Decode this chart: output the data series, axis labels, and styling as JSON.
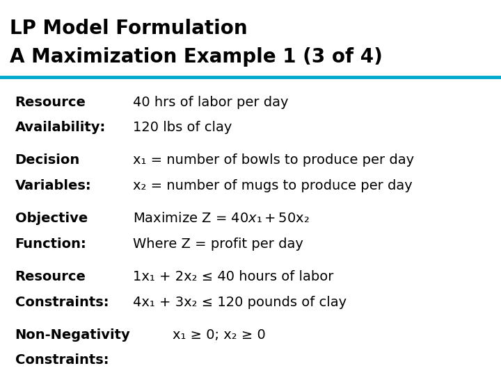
{
  "title_line1": "LP Model Formulation",
  "title_line2": "A Maximization Example 1 (3 of 4)",
  "title_fontsize": 20,
  "body_fontsize": 14,
  "bold_fontsize": 14,
  "background_color": "#ffffff",
  "title_color": "#000000",
  "body_color": "#000000",
  "line_color": "#00aacc",
  "rows": [
    {
      "label": "Resource\nAvailability:",
      "content_lines": [
        "40 hrs of labor per day",
        "120 lbs of clay"
      ],
      "content_indent_extra": 0.0
    },
    {
      "label": "Decision\nVariables:",
      "content_lines": [
        "x₁ = number of bowls to produce per day",
        "x₂ = number of mugs to produce per day"
      ],
      "content_indent_extra": 0.0
    },
    {
      "label": "Objective\nFunction:",
      "content_lines": [
        "Maximize Z = $40x₁ + $50x₂",
        "Where Z = profit per day"
      ],
      "content_indent_extra": 0.0
    },
    {
      "label": "Resource\nConstraints:",
      "content_lines": [
        "1x₁ + 2x₂ ≤ 40 hours of labor",
        "4x₁ + 3x₂ ≤ 120 pounds of clay"
      ],
      "content_indent_extra": 0.0
    },
    {
      "label": "Non-Negativity\nConstraints:",
      "content_lines": [
        "x₁ ≥ 0; x₂ ≥ 0"
      ],
      "content_indent_extra": 0.08
    }
  ]
}
